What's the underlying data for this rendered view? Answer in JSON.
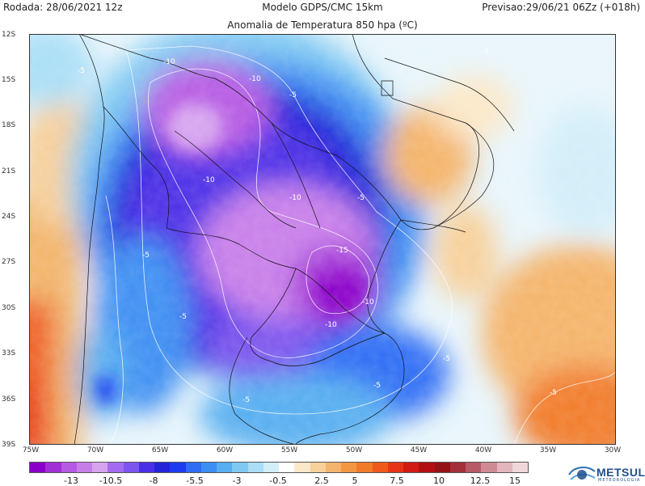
{
  "header": {
    "left": "Rodada: 28/06/2021 12z",
    "center": "Modelo GDPS/CMC 15km",
    "right": "Previsao:29/06/21 06Zz (+018h)",
    "subtitle": "Anomalia de Temperatura 850 hpa (ºC)"
  },
  "lat_labels": [
    "12S",
    "15S",
    "18S",
    "21S",
    "24S",
    "27S",
    "30S",
    "33S",
    "36S",
    "39S"
  ],
  "lon_labels": [
    "75W",
    "70W",
    "65W",
    "60W",
    "55W",
    "50W",
    "45W",
    "40W",
    "35W",
    "30W"
  ],
  "colorbar": {
    "colors": [
      "#8a00c8",
      "#a12ed6",
      "#b65ae3",
      "#c77ee9",
      "#d6a3ef",
      "#a36cf0",
      "#7b55ee",
      "#4b2fe6",
      "#2323d8",
      "#1d3cf0",
      "#2e6df4",
      "#3d8ef2",
      "#57aef0",
      "#7fc9f2",
      "#a9def6",
      "#d2eef9",
      "#ffffff",
      "#fbe8c8",
      "#f7d09a",
      "#f4b46b",
      "#f39743",
      "#f17b2a",
      "#ee5a1c",
      "#e63516",
      "#d01a12",
      "#b20f12",
      "#941216",
      "#a3303a",
      "#b85a66",
      "#cf8b93",
      "#e2b6bb",
      "#f0d8da"
    ],
    "labels": [
      "-13",
      "-10.5",
      "-8",
      "-5.5",
      "-3",
      "-0.5",
      "2.5",
      "5",
      "7.5",
      "10",
      "12.5",
      "15"
    ]
  },
  "contour_labels": [
    "-5",
    "-10",
    "-10",
    "-5",
    "-10",
    "-10",
    "-5",
    "-15",
    "-10",
    "-5",
    "-10",
    "-5",
    "-5",
    "-5",
    "-5",
    "-5",
    "-5"
  ],
  "logo": {
    "name": "METSUL",
    "sub": "METEOROLOGIA"
  }
}
